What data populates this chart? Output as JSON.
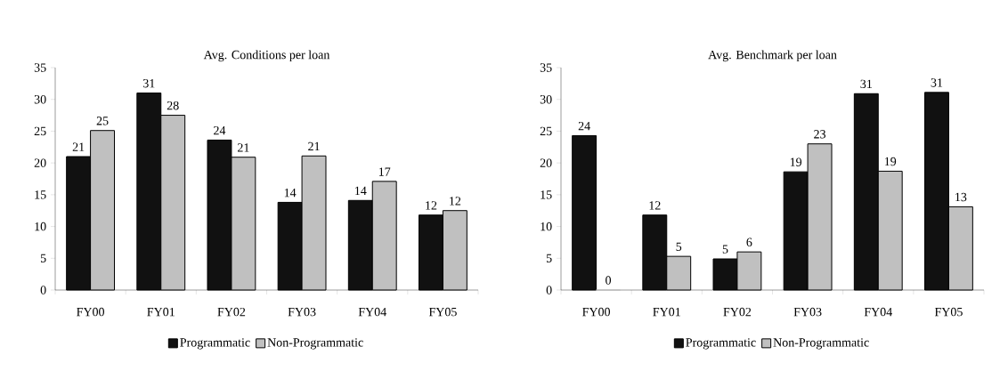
{
  "chart_data": [
    {
      "type": "bar",
      "title": "Avg. Conditions per loan",
      "categories": [
        "FY00",
        "FY01",
        "FY02",
        "FY03",
        "FY04",
        "FY05"
      ],
      "ylim": [
        0,
        35
      ],
      "yticks": [
        0,
        5,
        10,
        15,
        20,
        25,
        30,
        35
      ],
      "legend": "bottom",
      "series": [
        {
          "name": "Programmatic",
          "color": "#111111",
          "values": [
            21.0,
            31.0,
            23.6,
            13.8,
            14.1,
            11.8
          ],
          "value_labels": [
            "21",
            "31",
            "24",
            "14",
            "14",
            "12"
          ]
        },
        {
          "name": "Non-Programmatic",
          "color": "#c0c0c0",
          "values": [
            25.1,
            27.5,
            20.9,
            21.1,
            17.1,
            12.5
          ],
          "value_labels": [
            "25",
            "28",
            "21",
            "21",
            "17",
            "12"
          ]
        }
      ]
    },
    {
      "type": "bar",
      "title": "Avg. Benchmark per loan",
      "categories": [
        "FY00",
        "FY01",
        "FY02",
        "FY03",
        "FY04",
        "FY05"
      ],
      "ylim": [
        0,
        35
      ],
      "yticks": [
        0,
        5,
        10,
        15,
        20,
        25,
        30,
        35
      ],
      "legend": "bottom",
      "series": [
        {
          "name": "Programmatic",
          "color": "#111111",
          "values": [
            24.3,
            11.8,
            4.9,
            18.6,
            30.9,
            31.1
          ],
          "value_labels": [
            "24",
            "12",
            "5",
            "19",
            "31",
            "31"
          ]
        },
        {
          "name": "Non-Programmatic",
          "color": "#c0c0c0",
          "values": [
            0,
            5.3,
            6.0,
            23.0,
            18.7,
            13.1
          ],
          "value_labels": [
            "0",
            "5",
            "6",
            "23",
            "19",
            "13"
          ]
        }
      ]
    }
  ]
}
